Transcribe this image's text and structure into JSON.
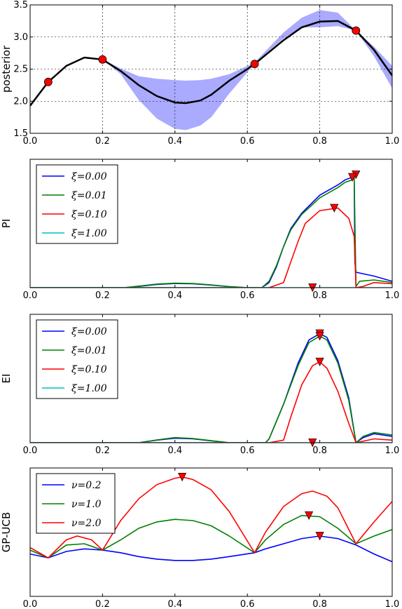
{
  "chart_data": [
    {
      "type": "line",
      "ylabel": "posterior",
      "xlim": [
        0,
        1
      ],
      "ylim": [
        1.5,
        3.5
      ],
      "grid": true,
      "xticks": [
        "0.0",
        "0.2",
        "0.4",
        "0.6",
        "0.8",
        "1.0"
      ],
      "yticks": [
        "1.5",
        "2.0",
        "2.5",
        "3.0",
        "3.5"
      ],
      "band_color": "#aaaaff",
      "mean_color": "#000000",
      "point_color": "#ff0000",
      "band": {
        "x": [
          0.0,
          0.05,
          0.1,
          0.15,
          0.2,
          0.25,
          0.3,
          0.35,
          0.4,
          0.43,
          0.47,
          0.5,
          0.55,
          0.6,
          0.62,
          0.65,
          0.7,
          0.75,
          0.8,
          0.85,
          0.9,
          0.95,
          1.0
        ],
        "upper": [
          1.93,
          2.3,
          2.55,
          2.68,
          2.65,
          2.51,
          2.39,
          2.35,
          2.33,
          2.32,
          2.33,
          2.35,
          2.42,
          2.55,
          2.6,
          2.78,
          3.07,
          3.3,
          3.42,
          3.38,
          3.1,
          2.85,
          2.55
        ],
        "lower": [
          1.93,
          2.3,
          2.55,
          2.68,
          2.65,
          2.42,
          2.02,
          1.73,
          1.57,
          1.55,
          1.62,
          1.75,
          2.12,
          2.45,
          2.6,
          2.74,
          2.98,
          3.15,
          3.15,
          3.17,
          3.1,
          2.7,
          2.2
        ]
      },
      "mean": {
        "x": [
          0.0,
          0.05,
          0.1,
          0.15,
          0.2,
          0.25,
          0.3,
          0.35,
          0.4,
          0.43,
          0.47,
          0.5,
          0.55,
          0.6,
          0.62,
          0.65,
          0.7,
          0.75,
          0.8,
          0.85,
          0.9,
          0.95,
          1.0
        ],
        "y": [
          1.93,
          2.3,
          2.55,
          2.68,
          2.65,
          2.47,
          2.25,
          2.08,
          1.98,
          1.97,
          2.01,
          2.1,
          2.32,
          2.5,
          2.58,
          2.72,
          2.95,
          3.15,
          3.24,
          3.25,
          3.1,
          2.8,
          2.4
        ]
      },
      "observations": {
        "x": [
          0.05,
          0.2,
          0.62,
          0.9
        ],
        "y": [
          2.3,
          2.65,
          2.58,
          3.1
        ]
      }
    },
    {
      "type": "line",
      "ylabel": "PI",
      "xlim": [
        0,
        1
      ],
      "ylim": [
        0,
        1
      ],
      "xticks": [
        "0.0",
        "0.2",
        "0.4",
        "0.6",
        "0.8",
        "1.0"
      ],
      "legend_location": "upper-left",
      "series": [
        {
          "name": "ξ=0.00",
          "color": "#0000ff",
          "x": [
            0.0,
            0.26,
            0.3,
            0.35,
            0.4,
            0.45,
            0.5,
            0.55,
            0.6,
            0.64,
            0.66,
            0.68,
            0.7,
            0.72,
            0.75,
            0.8,
            0.85,
            0.87,
            0.89,
            0.895,
            0.897,
            0.9,
            0.95,
            1.0
          ],
          "y": [
            0.0,
            0.0,
            0.01,
            0.025,
            0.032,
            0.03,
            0.02,
            0.008,
            0.0,
            0.0,
            0.04,
            0.16,
            0.32,
            0.46,
            0.58,
            0.72,
            0.8,
            0.84,
            0.86,
            0.88,
            0.2,
            0.12,
            0.09,
            0.05
          ]
        },
        {
          "name": "ξ=0.01",
          "color": "#008000",
          "x": [
            0.0,
            0.26,
            0.3,
            0.35,
            0.4,
            0.45,
            0.5,
            0.55,
            0.6,
            0.64,
            0.66,
            0.68,
            0.7,
            0.72,
            0.75,
            0.8,
            0.85,
            0.87,
            0.89,
            0.895,
            0.9,
            0.91,
            0.95,
            1.0
          ],
          "y": [
            0.0,
            0.0,
            0.012,
            0.028,
            0.035,
            0.032,
            0.022,
            0.008,
            0.0,
            0.0,
            0.05,
            0.17,
            0.32,
            0.45,
            0.57,
            0.7,
            0.78,
            0.82,
            0.84,
            0.86,
            0.01,
            0.05,
            0.06,
            0.04
          ]
        },
        {
          "name": "ξ=0.10",
          "color": "#ff0000",
          "x": [
            0.0,
            0.66,
            0.7,
            0.72,
            0.74,
            0.76,
            0.8,
            0.85,
            0.88,
            0.895,
            0.9,
            0.92,
            0.95,
            1.0
          ],
          "y": [
            0.0,
            0.0,
            0.04,
            0.2,
            0.36,
            0.5,
            0.6,
            0.62,
            0.54,
            0.4,
            0.0,
            0.01,
            0.04,
            0.03
          ]
        },
        {
          "name": "ξ=1.00",
          "color": "#00bfbf",
          "x": [
            0.0,
            1.0
          ],
          "y": [
            0.0,
            0.0
          ]
        }
      ],
      "maxima": {
        "x": [
          0.9,
          0.89,
          0.84,
          0.78
        ],
        "y": [
          0.88,
          0.86,
          0.62,
          0.0
        ]
      },
      "marker_color": "#ff0000"
    },
    {
      "type": "line",
      "ylabel": "EI",
      "xlim": [
        0,
        1
      ],
      "ylim": [
        0,
        1
      ],
      "xticks": [
        "0.0",
        "0.2",
        "0.4",
        "0.6",
        "0.8",
        "1.0"
      ],
      "legend_location": "upper-left",
      "series": [
        {
          "name": "ξ=0.00",
          "color": "#0000ff",
          "x": [
            0.0,
            0.3,
            0.35,
            0.4,
            0.45,
            0.5,
            0.55,
            0.65,
            0.66,
            0.7,
            0.74,
            0.77,
            0.8,
            0.82,
            0.85,
            0.88,
            0.9,
            0.92,
            0.95,
            1.0
          ],
          "y": [
            0.0,
            0.0,
            0.02,
            0.035,
            0.03,
            0.015,
            0.0,
            0.0,
            0.03,
            0.3,
            0.62,
            0.8,
            0.85,
            0.82,
            0.64,
            0.35,
            0.0,
            0.04,
            0.07,
            0.05
          ]
        },
        {
          "name": "ξ=0.01",
          "color": "#008000",
          "x": [
            0.0,
            0.3,
            0.35,
            0.4,
            0.45,
            0.5,
            0.55,
            0.65,
            0.66,
            0.7,
            0.74,
            0.77,
            0.8,
            0.82,
            0.85,
            0.88,
            0.9,
            0.92,
            0.95,
            1.0
          ],
          "y": [
            0.0,
            0.0,
            0.022,
            0.04,
            0.033,
            0.016,
            0.0,
            0.0,
            0.03,
            0.3,
            0.6,
            0.78,
            0.83,
            0.8,
            0.62,
            0.33,
            0.0,
            0.05,
            0.08,
            0.06
          ]
        },
        {
          "name": "ξ=0.10",
          "color": "#ff0000",
          "x": [
            0.0,
            0.66,
            0.7,
            0.72,
            0.75,
            0.78,
            0.8,
            0.82,
            0.85,
            0.88,
            0.9,
            0.95,
            1.0
          ],
          "y": [
            0.0,
            0.0,
            0.02,
            0.2,
            0.45,
            0.6,
            0.63,
            0.58,
            0.4,
            0.15,
            0.0,
            0.03,
            0.02
          ]
        },
        {
          "name": "ξ=1.00",
          "color": "#00bfbf",
          "x": [
            0.0,
            1.0
          ],
          "y": [
            0.0,
            0.0
          ]
        }
      ],
      "maxima": {
        "x": [
          0.8,
          0.8,
          0.8,
          0.78
        ],
        "y": [
          0.85,
          0.83,
          0.63,
          0.0
        ]
      },
      "marker_color": "#ff0000"
    },
    {
      "type": "line",
      "ylabel": "GP-UCB",
      "xlim": [
        0,
        1
      ],
      "ylim": [
        0,
        1
      ],
      "xticks": [
        "0.0",
        "0.2",
        "0.4",
        "0.6",
        "0.8",
        "1.0"
      ],
      "legend_location": "upper-left",
      "series": [
        {
          "name": "ν=0.2",
          "color": "#0000ff",
          "x": [
            0.0,
            0.05,
            0.1,
            0.15,
            0.2,
            0.25,
            0.3,
            0.35,
            0.4,
            0.45,
            0.5,
            0.55,
            0.62,
            0.65,
            0.7,
            0.75,
            0.8,
            0.85,
            0.9,
            0.95,
            1.0
          ],
          "y": [
            0.33,
            0.3,
            0.35,
            0.37,
            0.36,
            0.34,
            0.31,
            0.29,
            0.28,
            0.28,
            0.29,
            0.31,
            0.34,
            0.37,
            0.41,
            0.45,
            0.47,
            0.45,
            0.4,
            0.33,
            0.27
          ]
        },
        {
          "name": "ν=1.0",
          "color": "#008000",
          "x": [
            0.0,
            0.05,
            0.1,
            0.15,
            0.2,
            0.25,
            0.3,
            0.35,
            0.4,
            0.45,
            0.5,
            0.55,
            0.62,
            0.65,
            0.7,
            0.75,
            0.8,
            0.85,
            0.9,
            0.95,
            1.0
          ],
          "y": [
            0.36,
            0.3,
            0.4,
            0.41,
            0.36,
            0.44,
            0.53,
            0.58,
            0.6,
            0.59,
            0.55,
            0.47,
            0.34,
            0.44,
            0.56,
            0.63,
            0.62,
            0.53,
            0.41,
            0.47,
            0.52
          ]
        },
        {
          "name": "ν=2.0",
          "color": "#ff0000",
          "x": [
            0.0,
            0.05,
            0.1,
            0.13,
            0.17,
            0.2,
            0.25,
            0.3,
            0.35,
            0.4,
            0.42,
            0.45,
            0.5,
            0.55,
            0.62,
            0.65,
            0.7,
            0.75,
            0.78,
            0.82,
            0.85,
            0.9,
            0.95,
            1.0
          ],
          "y": [
            0.38,
            0.3,
            0.44,
            0.47,
            0.44,
            0.36,
            0.59,
            0.76,
            0.87,
            0.92,
            0.93,
            0.91,
            0.83,
            0.66,
            0.34,
            0.5,
            0.7,
            0.8,
            0.82,
            0.78,
            0.69,
            0.41,
            0.58,
            0.74
          ]
        }
      ],
      "maxima": {
        "x": [
          0.8,
          0.77,
          0.42
        ],
        "y": [
          0.47,
          0.63,
          0.93
        ]
      },
      "marker_color": "#ff0000"
    }
  ]
}
